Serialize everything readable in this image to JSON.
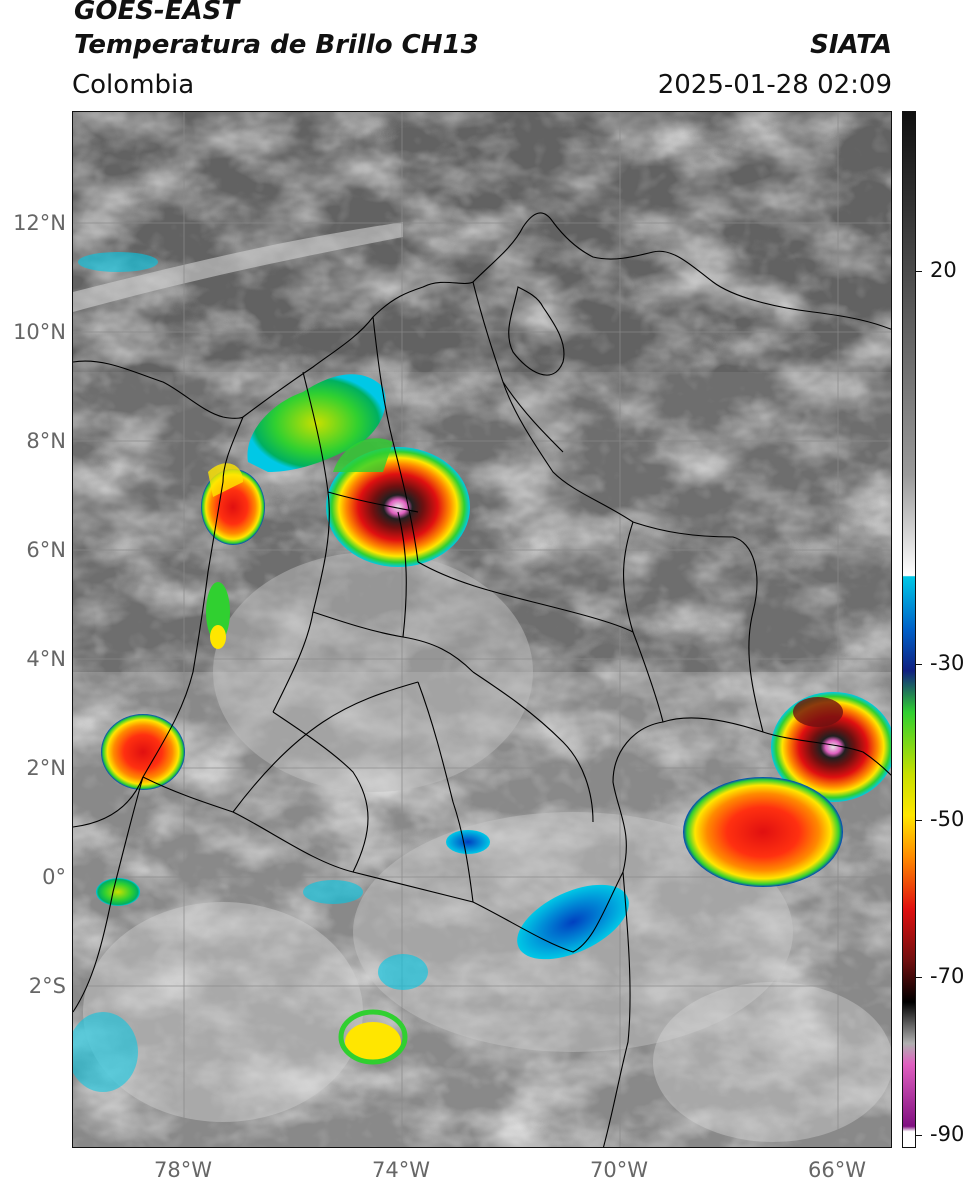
{
  "header": {
    "satellite": "GOES-EAST",
    "product": "Temperatura de Brillo CH13",
    "region": "Colombia",
    "agency": "SIATA",
    "datetime": "2025-01-28 02:09"
  },
  "map": {
    "lat_labels": [
      "12°N",
      "10°N",
      "8°N",
      "6°N",
      "4°N",
      "2°N",
      "0°",
      "2°S"
    ],
    "lon_labels": [
      "78°W",
      "74°W",
      "70°W",
      "66°W"
    ]
  },
  "colorbar": {
    "labels": [
      "20",
      "-30",
      "-50",
      "-70",
      "-90"
    ],
    "colors": {
      "cyan": "#00c8e6",
      "blue": "#0040c0",
      "navy": "#102080",
      "green": "#30d030",
      "yellow": "#ffe600",
      "orange": "#ff8a00",
      "red": "#e01010",
      "darkred": "#701010",
      "magenta": "#e060c0",
      "purple": "#801080"
    }
  }
}
